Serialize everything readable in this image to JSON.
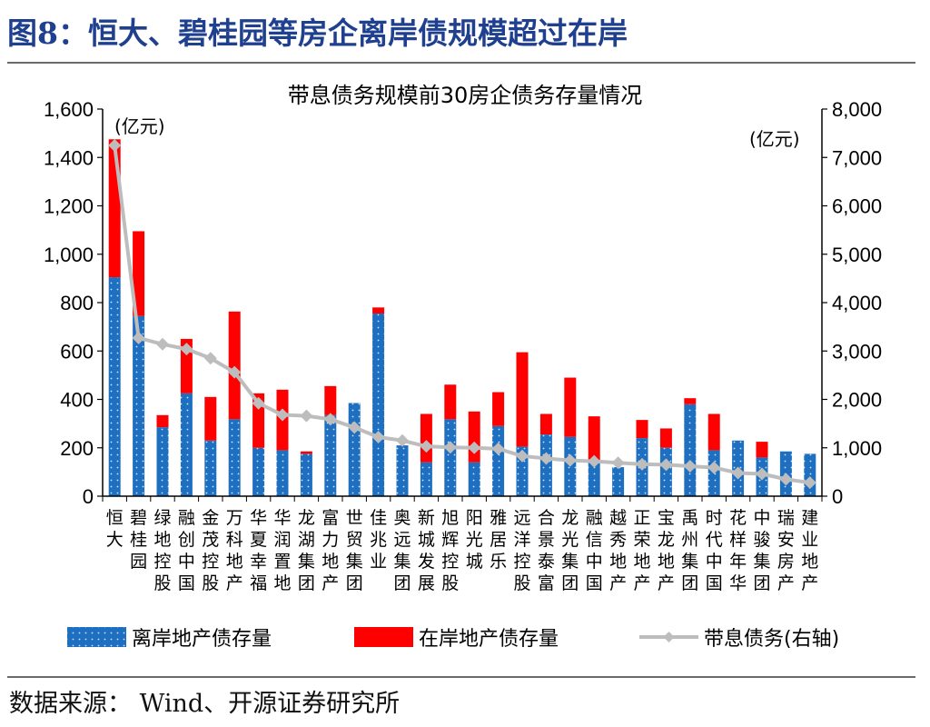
{
  "figure_title": "图8：恒大、碧桂园等房企离岸债规模超过在岸",
  "source_note": "数据来源： Wind、开源证券研究所",
  "colors": {
    "offshore": "#1f6fc1",
    "onshore": "#ff0000",
    "line": "#bdbdbd",
    "title": "#1f3f8f"
  },
  "chart_data": {
    "type": "bar",
    "stacked": true,
    "title": "带息债务规模前30房企债务存量情况",
    "left_axis_unit": "(亿元)",
    "right_axis_unit": "(亿元)",
    "ylim_left": [
      0,
      1600
    ],
    "ylim_right": [
      0,
      8000
    ],
    "yticks_left": [
      "0",
      "200",
      "400",
      "600",
      "800",
      "1,000",
      "1,200",
      "1,400",
      "1,600"
    ],
    "yticks_right": [
      "0",
      "1,000",
      "2,000",
      "3,000",
      "4,000",
      "5,000",
      "6,000",
      "7,000",
      "8,000"
    ],
    "grid": false,
    "legend_position": "bottom",
    "categories": [
      "恒大",
      "碧桂园",
      "绿地控股",
      "融创中国",
      "金茂控股",
      "万科地产",
      "华夏幸福",
      "华润置地",
      "龙湖集团",
      "富力地产",
      "世贸集团",
      "佳兆业",
      "奥远集团",
      "新城发展",
      "旭辉控股",
      "阳光城",
      "雅居乐",
      "远洋控股",
      "合景泰富",
      "龙光集团",
      "融信中国",
      "越秀地产",
      "正荣地产",
      "宝龙地产",
      "禹州集团",
      "时代中国",
      "花样年华",
      "中骏集团",
      "瑞安房产",
      "建业地产"
    ],
    "series": [
      {
        "name": "离岸地产债存量",
        "axis": "left",
        "kind": "bar",
        "values": [
          905,
          745,
          285,
          425,
          230,
          318,
          200,
          190,
          175,
          335,
          385,
          755,
          210,
          140,
          318,
          140,
          290,
          205,
          255,
          245,
          140,
          120,
          240,
          200,
          380,
          190,
          230,
          160,
          185,
          175
        ]
      },
      {
        "name": "在岸地产债存量",
        "axis": "left",
        "kind": "bar",
        "values": [
          570,
          350,
          50,
          225,
          180,
          445,
          225,
          250,
          10,
          120,
          0,
          25,
          0,
          200,
          143,
          210,
          140,
          390,
          85,
          245,
          190,
          0,
          75,
          80,
          25,
          150,
          0,
          65,
          0,
          0
        ]
      },
      {
        "name": "带息债务(右轴)",
        "axis": "right",
        "kind": "line",
        "values": [
          7250,
          3270,
          3140,
          3040,
          2850,
          2560,
          1920,
          1680,
          1660,
          1590,
          1420,
          1220,
          1150,
          1030,
          1010,
          1000,
          980,
          830,
          780,
          740,
          720,
          690,
          660,
          650,
          620,
          590,
          480,
          460,
          350,
          280
        ]
      }
    ]
  }
}
